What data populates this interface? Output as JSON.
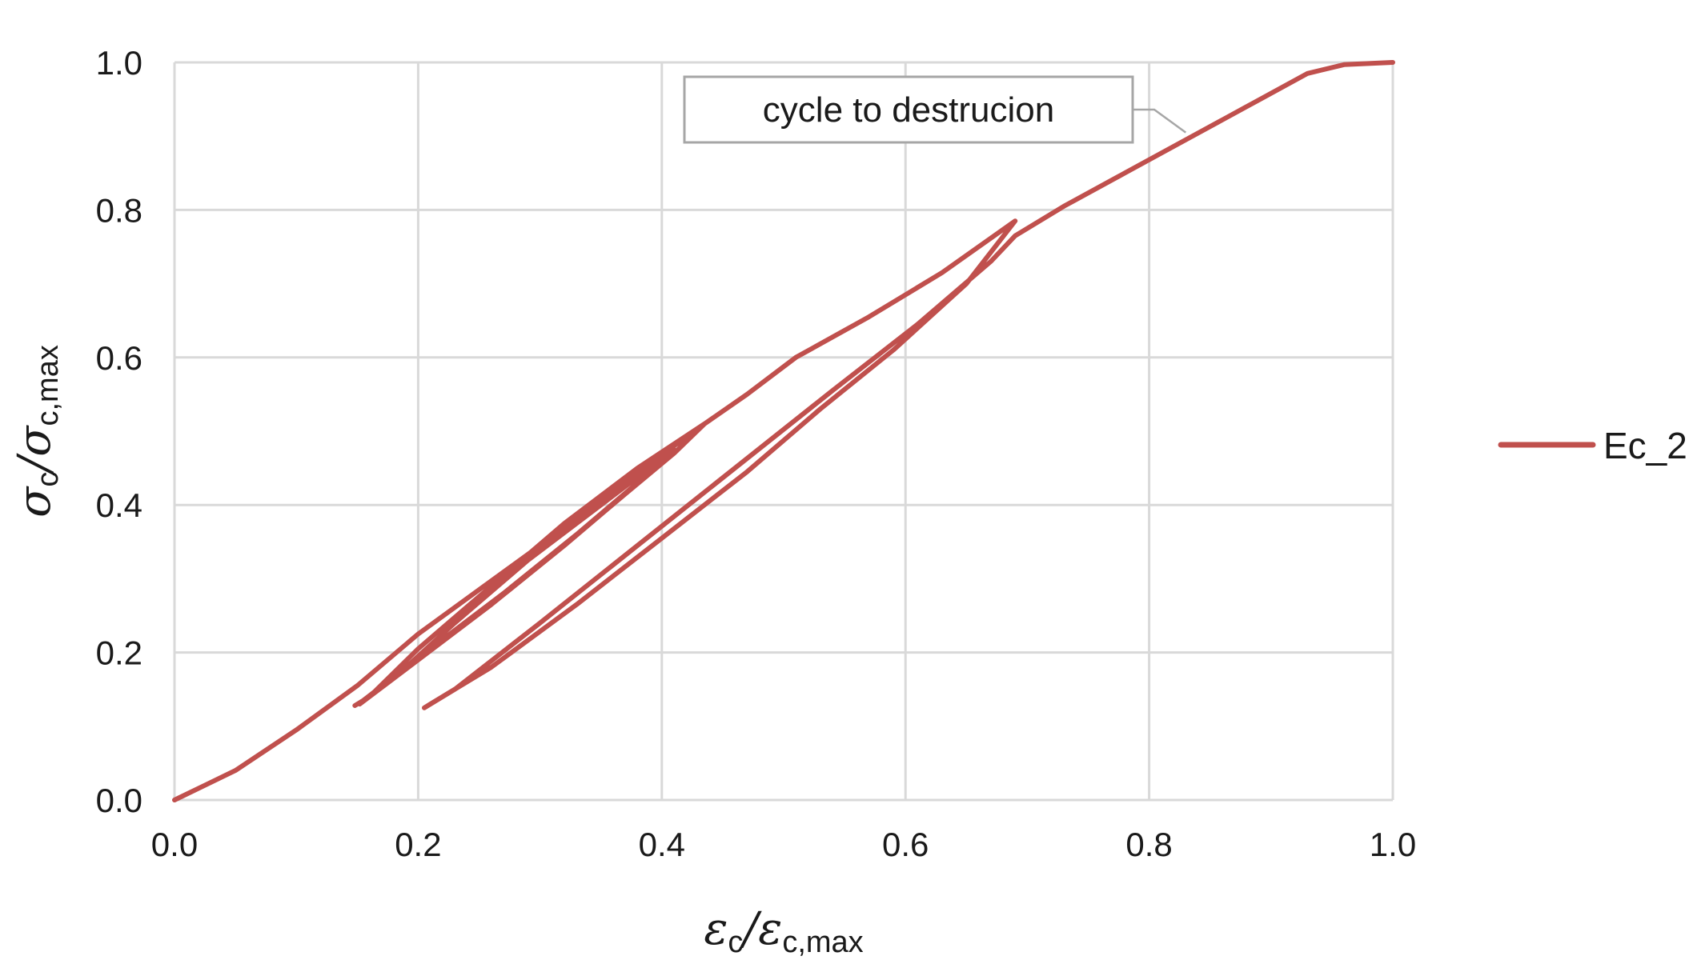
{
  "chart_data": {
    "type": "line",
    "title": "",
    "xlabel": {
      "symbol": "ε",
      "subscript": "c",
      "separator": "/",
      "symbol2": "ε",
      "subscript2": "c,max"
    },
    "ylabel": {
      "symbol": "σ",
      "subscript": "c",
      "separator": "/",
      "symbol2": "σ",
      "subscript2": "c,max"
    },
    "xlim": [
      0,
      1.0
    ],
    "ylim": [
      0,
      1.0
    ],
    "x_ticks": [
      "0.0",
      "0.2",
      "0.4",
      "0.6",
      "0.8",
      "1.0"
    ],
    "y_ticks": [
      "0.0",
      "0.2",
      "0.4",
      "0.6",
      "0.8",
      "1.0"
    ],
    "grid": true,
    "legend_position": "right",
    "series": [
      {
        "name": "Ec_2",
        "color": "#c0504d",
        "points": [
          [
            0.0,
            0.0
          ],
          [
            0.05,
            0.04
          ],
          [
            0.1,
            0.095
          ],
          [
            0.15,
            0.155
          ],
          [
            0.2,
            0.225
          ],
          [
            0.25,
            0.285
          ],
          [
            0.3,
            0.345
          ],
          [
            0.35,
            0.405
          ],
          [
            0.4,
            0.468
          ],
          [
            0.435,
            0.51
          ],
          [
            0.38,
            0.45
          ],
          [
            0.32,
            0.375
          ],
          [
            0.26,
            0.29
          ],
          [
            0.2,
            0.205
          ],
          [
            0.16,
            0.14
          ],
          [
            0.148,
            0.128
          ],
          [
            0.155,
            0.135
          ],
          [
            0.21,
            0.205
          ],
          [
            0.27,
            0.28
          ],
          [
            0.33,
            0.36
          ],
          [
            0.38,
            0.43
          ],
          [
            0.41,
            0.475
          ],
          [
            0.35,
            0.4
          ],
          [
            0.29,
            0.325
          ],
          [
            0.23,
            0.24
          ],
          [
            0.18,
            0.165
          ],
          [
            0.152,
            0.13
          ],
          [
            0.2,
            0.19
          ],
          [
            0.26,
            0.265
          ],
          [
            0.32,
            0.345
          ],
          [
            0.37,
            0.415
          ],
          [
            0.41,
            0.47
          ],
          [
            0.435,
            0.51
          ],
          [
            0.47,
            0.55
          ],
          [
            0.51,
            0.6
          ],
          [
            0.57,
            0.655
          ],
          [
            0.63,
            0.715
          ],
          [
            0.69,
            0.785
          ],
          [
            0.65,
            0.7
          ],
          [
            0.59,
            0.61
          ],
          [
            0.53,
            0.53
          ],
          [
            0.47,
            0.445
          ],
          [
            0.4,
            0.355
          ],
          [
            0.33,
            0.265
          ],
          [
            0.26,
            0.18
          ],
          [
            0.21,
            0.13
          ],
          [
            0.205,
            0.125
          ],
          [
            0.23,
            0.15
          ],
          [
            0.3,
            0.24
          ],
          [
            0.38,
            0.345
          ],
          [
            0.46,
            0.45
          ],
          [
            0.54,
            0.555
          ],
          [
            0.61,
            0.645
          ],
          [
            0.67,
            0.73
          ],
          [
            0.69,
            0.765
          ],
          [
            0.73,
            0.805
          ],
          [
            0.78,
            0.85
          ],
          [
            0.83,
            0.895
          ],
          [
            0.88,
            0.94
          ],
          [
            0.93,
            0.985
          ],
          [
            0.96,
            0.997
          ],
          [
            1.0,
            1.0
          ]
        ]
      }
    ],
    "annotation": {
      "text": "cycle to destrucion",
      "target": [
        0.83,
        0.905
      ]
    }
  }
}
